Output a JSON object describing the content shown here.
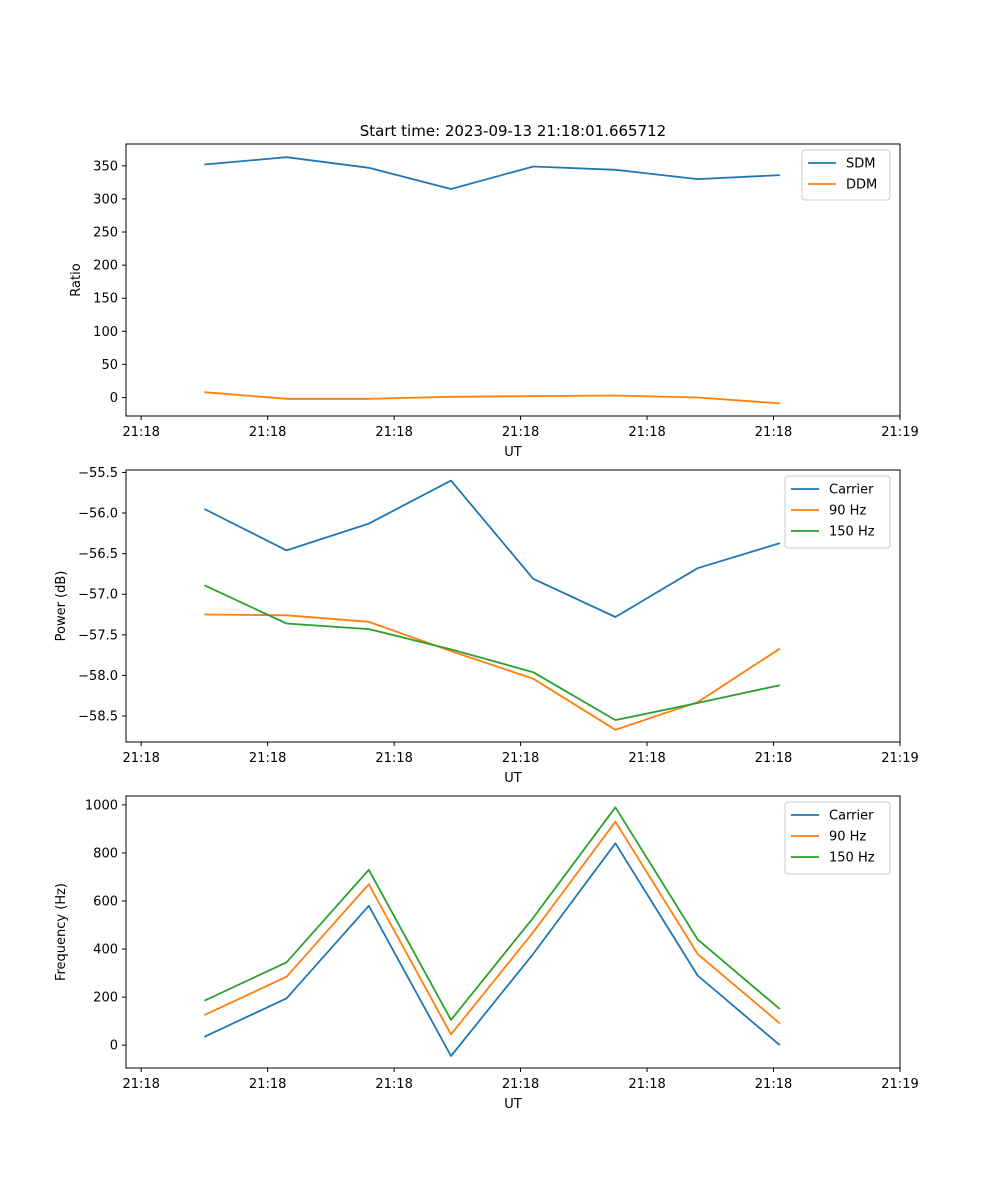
{
  "figure": {
    "title": "Start time: 2023-09-13 21:18:01.665712"
  },
  "colors": {
    "blue": "#1f77b4",
    "orange": "#ff7f0e",
    "green": "#2ca02c"
  },
  "chart_data": [
    {
      "type": "line",
      "title": "Start time: 2023-09-13 21:18:01.665712",
      "xlabel": "UT",
      "ylabel": "Ratio",
      "x": [
        0.5,
        1.15,
        1.8,
        2.45,
        3.1,
        3.75,
        4.4,
        5.05
      ],
      "xlim": [
        -0.12,
        6.0
      ],
      "xticks": [
        0,
        1,
        2,
        3,
        4,
        5,
        6
      ],
      "xticklabels": [
        "21:18",
        "21:18",
        "21:18",
        "21:18",
        "21:18",
        "21:18",
        "21:19"
      ],
      "ylim": [
        -28,
        383
      ],
      "yticks": [
        0,
        50,
        100,
        150,
        200,
        250,
        300,
        350
      ],
      "yticklabels": [
        "0",
        "50",
        "100",
        "150",
        "200",
        "250",
        "300",
        "350"
      ],
      "legend_position": "top-right",
      "series": [
        {
          "name": "SDM",
          "color": "#1f77b4",
          "values": [
            352,
            363,
            347,
            315,
            349,
            344,
            330,
            336
          ]
        },
        {
          "name": "DDM",
          "color": "#ff7f0e",
          "values": [
            8,
            -2,
            -2,
            1,
            2,
            3,
            0,
            -9
          ]
        }
      ]
    },
    {
      "type": "line",
      "title": "",
      "xlabel": "UT",
      "ylabel": "Power (dB)",
      "x": [
        0.5,
        1.15,
        1.8,
        2.45,
        3.1,
        3.75,
        4.4,
        5.05
      ],
      "xlim": [
        -0.12,
        6.0
      ],
      "xticks": [
        0,
        1,
        2,
        3,
        4,
        5,
        6
      ],
      "xticklabels": [
        "21:18",
        "21:18",
        "21:18",
        "21:18",
        "21:18",
        "21:18",
        "21:19"
      ],
      "ylim": [
        -58.82,
        -55.47
      ],
      "yticks": [
        -58.5,
        -58.0,
        -57.5,
        -57.0,
        -56.5,
        -56.0,
        -55.5
      ],
      "yticklabels": [
        "−58.5",
        "−58.0",
        "−57.5",
        "−57.0",
        "−56.5",
        "−56.0",
        "−55.5"
      ],
      "legend_position": "top-right",
      "series": [
        {
          "name": "Carrier",
          "color": "#1f77b4",
          "values": [
            -55.95,
            -56.46,
            -56.13,
            -55.6,
            -56.81,
            -57.28,
            -56.68,
            -56.37
          ]
        },
        {
          "name": "90 Hz",
          "color": "#ff7f0e",
          "values": [
            -57.25,
            -57.26,
            -57.34,
            -57.7,
            -58.04,
            -58.67,
            -58.33,
            -57.67
          ]
        },
        {
          "name": "150 Hz",
          "color": "#2ca02c",
          "values": [
            -56.89,
            -57.36,
            -57.43,
            -57.68,
            -57.96,
            -58.55,
            -58.34,
            -58.12
          ]
        }
      ]
    },
    {
      "type": "line",
      "title": "",
      "xlabel": "UT",
      "ylabel": "Frequency (Hz)",
      "x": [
        0.5,
        1.15,
        1.8,
        2.45,
        3.1,
        3.75,
        4.4,
        5.05
      ],
      "xlim": [
        -0.12,
        6.0
      ],
      "xticks": [
        0,
        1,
        2,
        3,
        4,
        5,
        6
      ],
      "xticklabels": [
        "21:18",
        "21:18",
        "21:18",
        "21:18",
        "21:18",
        "21:18",
        "21:19"
      ],
      "ylim": [
        -95,
        1037
      ],
      "yticks": [
        0,
        200,
        400,
        600,
        800,
        1000
      ],
      "yticklabels": [
        "0",
        "200",
        "400",
        "600",
        "800",
        "1000"
      ],
      "legend_position": "top-right",
      "series": [
        {
          "name": "Carrier",
          "color": "#1f77b4",
          "values": [
            35,
            195,
            580,
            -45,
            380,
            840,
            290,
            0
          ]
        },
        {
          "name": "90 Hz",
          "color": "#ff7f0e",
          "values": [
            125,
            285,
            670,
            45,
            470,
            930,
            380,
            90
          ]
        },
        {
          "name": "150 Hz",
          "color": "#2ca02c",
          "values": [
            185,
            345,
            730,
            105,
            530,
            990,
            440,
            150
          ]
        }
      ]
    }
  ]
}
